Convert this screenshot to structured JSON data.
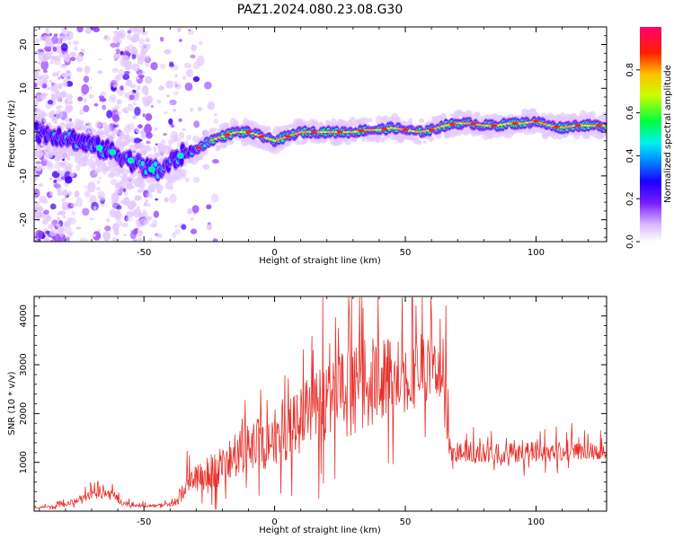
{
  "figure": {
    "title": "PAZ1.2024.080.23.08.G30"
  },
  "chart_data": [
    {
      "id": "spectrogram",
      "type": "heatmap",
      "title": "",
      "xlabel": "Height of straight line (km)",
      "ylabel": "Frequency (Hz)",
      "xlim": [
        -92,
        127
      ],
      "ylim": [
        -25,
        24
      ],
      "xticks": [
        -50,
        0,
        50,
        100
      ],
      "yticks": [
        -20,
        -10,
        0,
        10,
        20
      ],
      "grid": false,
      "colormap": [
        "#ffffff",
        "#e4c9ff",
        "#9c4dff",
        "#4000ff",
        "#0060ff",
        "#00e8ff",
        "#00ff50",
        "#d8ff00",
        "#ffb000",
        "#ff2000",
        "#ff0060"
      ],
      "colorbar": {
        "label": "Normalized spectral amplitude",
        "range": [
          0,
          1
        ],
        "ticks": [
          0.0,
          0.2,
          0.4,
          0.6,
          0.8
        ]
      },
      "ridge": {
        "x": [
          -92,
          -80,
          -70,
          -60,
          -50,
          -44,
          -40,
          -35,
          -30,
          -25,
          -20,
          -15,
          -10,
          -5,
          0,
          5,
          10,
          15,
          20,
          25,
          30,
          35,
          40,
          45,
          50,
          55,
          60,
          65,
          70,
          75,
          80,
          85,
          90,
          95,
          100,
          105,
          110,
          115,
          120,
          127
        ],
        "y": [
          0,
          -1,
          -3,
          -5,
          -8,
          -9,
          -7,
          -5,
          -4,
          -2,
          -1,
          0,
          0,
          -1,
          -2,
          -1,
          0,
          0,
          0,
          0,
          0,
          0.5,
          0.5,
          1,
          0.5,
          0,
          0.5,
          1.5,
          2,
          2,
          1.5,
          1.5,
          2,
          2,
          2.5,
          1.5,
          1,
          1.5,
          1.5,
          1.5
        ]
      },
      "ridge_peak_x": [
        -67,
        -62,
        -55,
        -47,
        -36,
        -29,
        -18,
        -10,
        -5,
        5,
        15,
        25,
        33,
        42,
        50,
        60,
        68,
        76,
        84,
        92,
        100,
        108,
        116,
        124
      ]
    },
    {
      "id": "snr",
      "type": "line",
      "title": "",
      "xlabel": "Height of straight line (km)",
      "ylabel": "SNR (10 * v/v)",
      "xlim": [
        -92,
        127
      ],
      "ylim": [
        0,
        4400
      ],
      "xticks": [
        -50,
        0,
        50,
        100
      ],
      "yticks": [
        1000,
        2000,
        3000,
        4000
      ],
      "grid": false,
      "series": [
        {
          "color": "#e8302a",
          "envelope": {
            "x": [
              -92,
              -85,
              -80,
              -75,
              -70,
              -65,
              -62,
              -58,
              -55,
              -50,
              -45,
              -40,
              -37,
              -35,
              -30,
              -25,
              -20,
              -15,
              -10,
              -5,
              0,
              5,
              10,
              15,
              20,
              25,
              30,
              35,
              40,
              45,
              50,
              55,
              60,
              64,
              65,
              66,
              67,
              70,
              80,
              90,
              100,
              110,
              120,
              127
            ],
            "base": [
              80,
              90,
              130,
              230,
              320,
              380,
              320,
              160,
              120,
              100,
              110,
              130,
              220,
              420,
              620,
              760,
              900,
              1050,
              1200,
              1350,
              1480,
              1650,
              1850,
              2000,
              2150,
              2280,
              2400,
              2500,
              2600,
              2680,
              2700,
              2780,
              2820,
              2850,
              2800,
              1800,
              1200,
              1180,
              1150,
              1180,
              1200,
              1200,
              1220,
              1230
            ],
            "spread": [
              50,
              50,
              80,
              120,
              160,
              200,
              180,
              80,
              60,
              50,
              60,
              80,
              150,
              300,
              500,
              600,
              700,
              800,
              900,
              1000,
              1050,
              1100,
              1200,
              1300,
              1400,
              1500,
              1550,
              1550,
              1500,
              1400,
              1300,
              1200,
              1150,
              1150,
              1100,
              800,
              450,
              400,
              350,
              350,
              350,
              330,
              330,
              300
            ]
          }
        }
      ]
    }
  ]
}
